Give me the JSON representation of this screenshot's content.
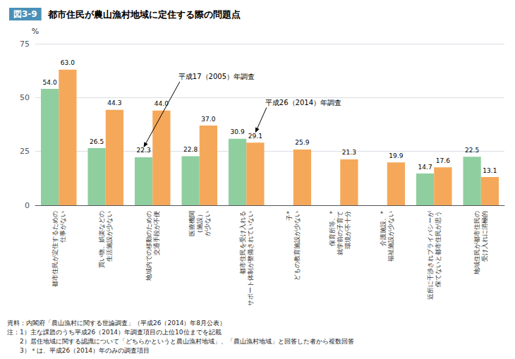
{
  "chart_data": {
    "type": "bar",
    "title": "都市住民が農山漁村地域に定住する際の問題点",
    "subtitle": "図3-9",
    "categories": [
      "都市住民が定住するための\n仕事がない",
      "買い物、娯楽などの\n生活施設が少ない",
      "地域内での移動のための\n交通手段が不便",
      "医療機関\n（施設）\nが少ない",
      "都市住民を受け入れる\nサポート体制が整備されていない",
      "子*\nどもの教育施設が少ない",
      "保育所等、*\n就学前の子育て\n環境が不十分",
      "介護施設、*\n福祉施設が少ない",
      "近所に干渉されプライバシーが\n保てないと都市住民が思う",
      "地域住民が都市住民の\n受け入れに消極的"
    ],
    "series": [
      {
        "name": "平成17（2005）年調査",
        "color": "#8fce9f",
        "values": [
          54.0,
          26.5,
          22.3,
          22.8,
          30.9,
          null,
          null,
          null,
          14.7,
          22.5
        ],
        "value_labels": [
          "54.0",
          "26.5",
          "22.3",
          "22.8",
          "30.9",
          null,
          null,
          null,
          "14.7",
          "22.5"
        ]
      },
      {
        "name": "平成26（2014）年調査",
        "color": "#f5a85a",
        "values": [
          63.0,
          44.3,
          44.0,
          37.0,
          29.1,
          25.9,
          21.3,
          19.9,
          17.6,
          13.1
        ],
        "value_labels": [
          "63.0",
          "44.3",
          "44.0",
          "37.0",
          "29.1",
          "25.9",
          "21.3",
          "19.9",
          "17.6",
          "13.1"
        ]
      }
    ],
    "ylabel": "%",
    "ylim": [
      0,
      75
    ],
    "yticks": [
      0,
      25,
      50,
      75
    ],
    "grid": true,
    "data_labels": true,
    "annotations": [
      {
        "text": "平成17（2005）年調査",
        "x": 2,
        "y": 22.3
      },
      {
        "text": "平成26（2014）年調査",
        "x": 4,
        "y": 29.1
      }
    ],
    "notes": [
      "資料：内閣府「農山漁村に関する世論調査」（平成26（2014）年8月公表）",
      "注：1）主な課題のうち平成26（2014）年調査項目の上位10位までを記載",
      "　　2）居住地域に関する認識について「どちらかというと農山漁村地域」、「農山漁村地域」と回答した者から複数回答",
      "　　3）＊は、平成26（2014）年のみの調査項目"
    ]
  }
}
